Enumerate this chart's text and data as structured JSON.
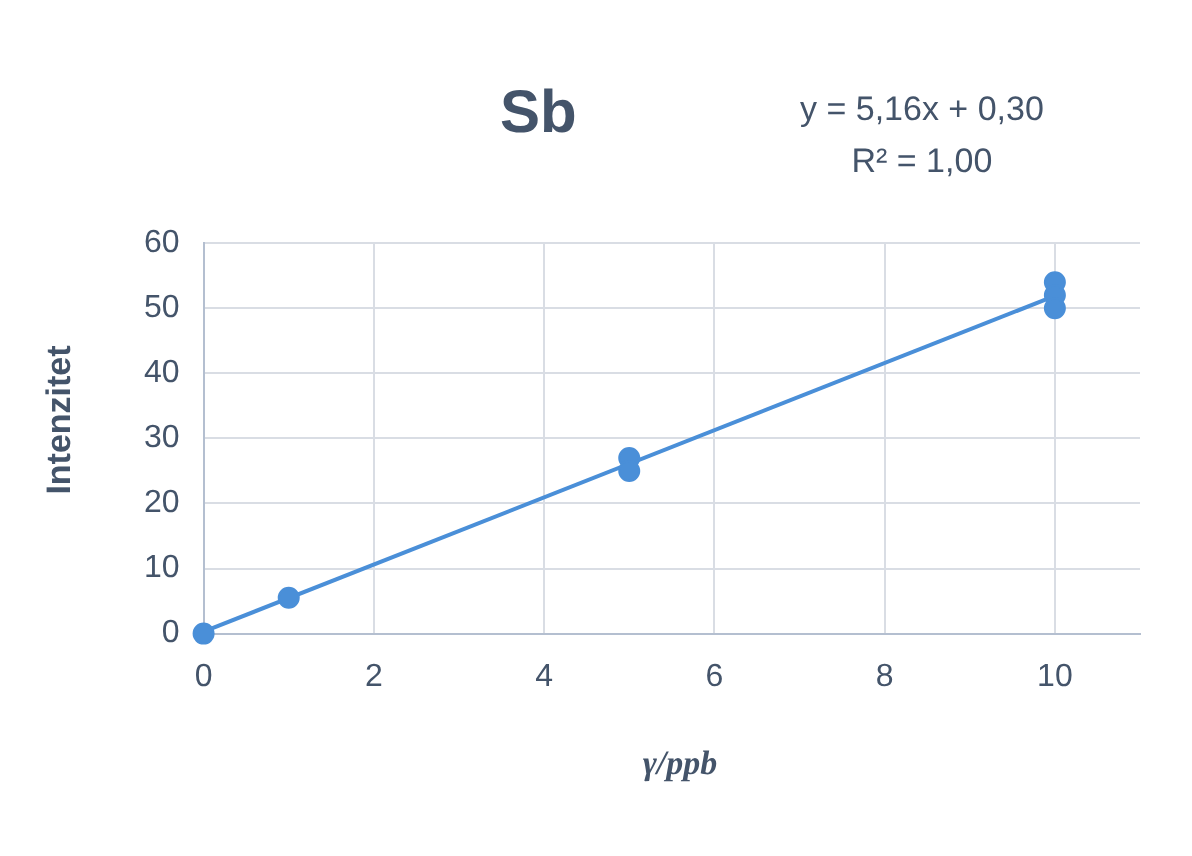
{
  "chart_data": {
    "type": "scatter",
    "title": "Sb",
    "xlabel": "γ/ppb",
    "ylabel": "Intenzitet",
    "annotations": [
      "y = 5,16x + 0,30",
      "R² = 1,00"
    ],
    "series": [
      {
        "color": "#4a8fd8",
        "marker": "circle",
        "x": [
          0,
          1,
          5,
          5,
          10,
          10,
          10
        ],
        "values": [
          0,
          5.5,
          27,
          25,
          54,
          52,
          50
        ]
      },
      {
        "type": "line",
        "color": "#4a8fd8",
        "x": [
          0,
          10
        ],
        "values": [
          0.3,
          51.9
        ]
      }
    ],
    "xlim": [
      0,
      11
    ],
    "xticks": [
      0,
      2,
      4,
      6,
      8,
      10
    ],
    "ylim": [
      0,
      60
    ],
    "yticks": [
      0,
      10,
      20,
      30,
      40,
      50,
      60
    ],
    "grid": true,
    "legend": false
  }
}
